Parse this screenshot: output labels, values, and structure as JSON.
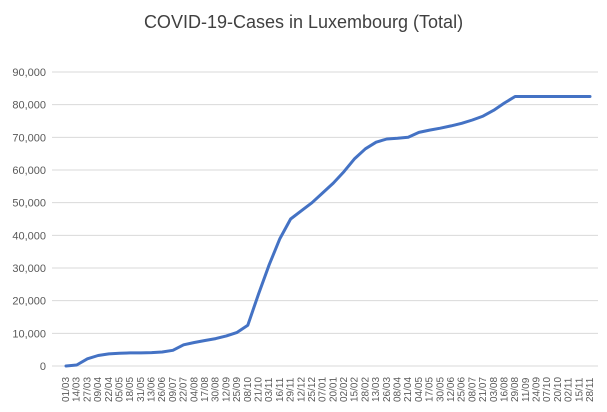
{
  "chart_data": {
    "type": "line",
    "title": "COVID-19-Cases in Luxembourg (Total)",
    "xlabel": "",
    "ylabel": "",
    "ylim": [
      0,
      90000
    ],
    "yticks": [
      "0",
      "10,000",
      "20,000",
      "30,000",
      "40,000",
      "50,000",
      "60,000",
      "70,000",
      "80,000",
      "90,000"
    ],
    "grid": true,
    "legend": "none",
    "line_color": "#4472C4",
    "x_tick_labels": [
      "01/03",
      "14/03",
      "27/03",
      "09/04",
      "22/04",
      "05/05",
      "18/05",
      "31/05",
      "13/06",
      "26/06",
      "09/07",
      "22/07",
      "04/08",
      "17/08",
      "30/08",
      "12/09",
      "25/09",
      "08/10",
      "21/10",
      "03/11",
      "16/11",
      "29/11",
      "12/12",
      "25/12",
      "07/01",
      "20/01",
      "02/02",
      "15/02",
      "28/02",
      "13/03",
      "26/03",
      "08/04",
      "21/04",
      "04/05",
      "17/05",
      "30/05",
      "12/06",
      "25/06",
      "08/07",
      "21/07",
      "03/08",
      "16/08",
      "29/08",
      "11/09",
      "24/09",
      "07/10",
      "20/10",
      "02/11",
      "15/11",
      "28/11"
    ],
    "series": [
      {
        "x": [
          "01/03",
          "14/03",
          "27/03",
          "09/04",
          "22/04",
          "05/05",
          "18/05",
          "31/05",
          "13/06",
          "26/06",
          "09/07",
          "22/07",
          "04/08",
          "17/08",
          "30/08",
          "12/09",
          "25/09",
          "08/10",
          "21/10",
          "03/11",
          "16/11",
          "29/11",
          "12/12",
          "25/12",
          "07/01",
          "20/01",
          "02/02",
          "15/02",
          "28/02",
          "13/03",
          "26/03",
          "08/04",
          "21/04",
          "04/05",
          "17/05",
          "30/05",
          "12/06",
          "25/06",
          "08/07",
          "21/07",
          "03/08",
          "16/08",
          "29/08",
          "11/09",
          "24/09",
          "07/10",
          "20/10",
          "02/11",
          "15/11",
          "28/11"
        ],
        "values": [
          0,
          300,
          2200,
          3200,
          3700,
          3900,
          4000,
          4000,
          4100,
          4300,
          4800,
          6500,
          7200,
          7800,
          8400,
          9200,
          10300,
          12500,
          22000,
          31000,
          39000,
          45000,
          47500,
          50000,
          53000,
          56000,
          59500,
          63500,
          66500,
          68500,
          69500,
          69700,
          70000,
          71500,
          72200,
          72800,
          73500,
          74300,
          75300,
          76500,
          78300,
          80500,
          82500,
          82500,
          82500,
          82500,
          82500,
          82500,
          82500,
          82500
        ]
      }
    ]
  }
}
